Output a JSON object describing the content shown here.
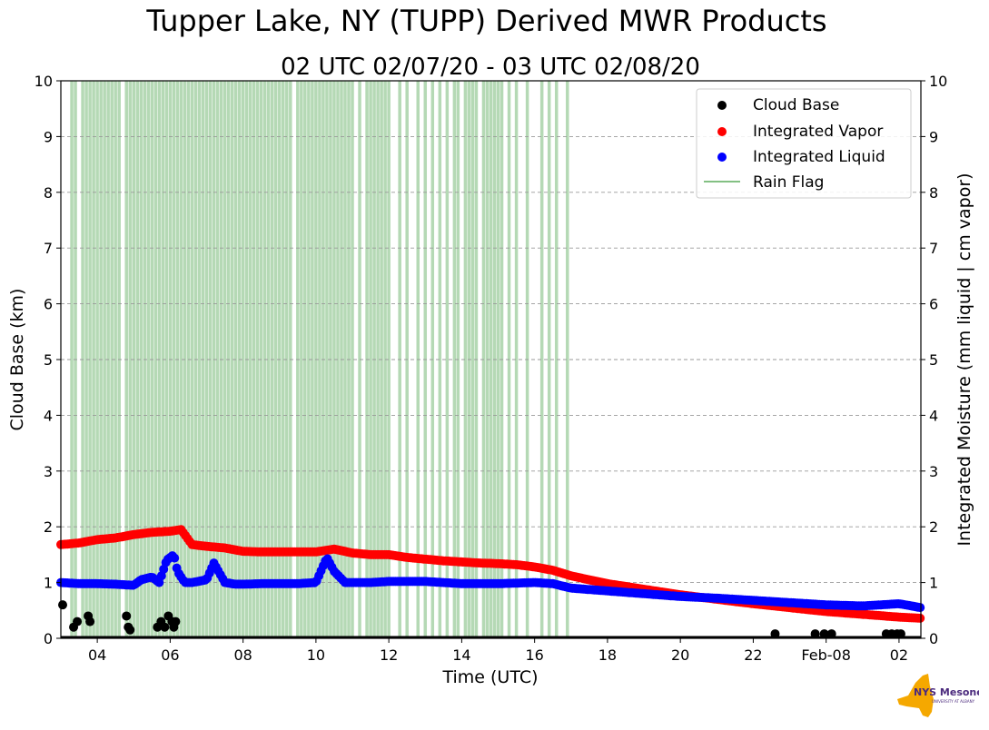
{
  "chart_data": {
    "type": "scatter",
    "title": "Tupper Lake, NY (TUPP) Derived MWR Products",
    "subtitle": "02 UTC 02/07/20 - 03 UTC 02/08/20",
    "xlabel": "Time (UTC)",
    "ylabel": "Cloud Base (km)",
    "ylabel_right": "Integrated Moisture (mm liquid | cm vapor)",
    "xlim_hours": [
      3.0,
      26.6
    ],
    "ylim": [
      0,
      10
    ],
    "y_ticks": [
      0,
      1,
      2,
      3,
      4,
      5,
      6,
      7,
      8,
      9,
      10
    ],
    "x_ticks": [
      {
        "h": 4,
        "label": "04"
      },
      {
        "h": 6,
        "label": "06"
      },
      {
        "h": 8,
        "label": "08"
      },
      {
        "h": 10,
        "label": "10"
      },
      {
        "h": 12,
        "label": "12"
      },
      {
        "h": 14,
        "label": "14"
      },
      {
        "h": 16,
        "label": "16"
      },
      {
        "h": 18,
        "label": "18"
      },
      {
        "h": 20,
        "label": "20"
      },
      {
        "h": 22,
        "label": "22"
      },
      {
        "h": 24,
        "label": "Feb-08"
      },
      {
        "h": 26,
        "label": "02"
      }
    ],
    "grid": "horizontal dashed",
    "legend_position": "top-right",
    "legend": [
      "Cloud Base",
      "Integrated Vapor",
      "Integrated Liquid",
      "Rain Flag"
    ],
    "colors": {
      "cloud_base": "#000000",
      "vapor": "#ff0000",
      "liquid": "#0000ff",
      "rain_flag": "#5aab5a"
    },
    "series": [
      {
        "name": "Integrated Vapor",
        "x": [
          3.0,
          3.5,
          4.0,
          4.5,
          5.0,
          5.5,
          6.0,
          6.3,
          6.6,
          7.0,
          7.5,
          8.0,
          8.5,
          9.0,
          9.5,
          10.0,
          10.5,
          11.0,
          11.5,
          12.0,
          12.5,
          13.0,
          13.5,
          14.0,
          14.5,
          15.0,
          15.5,
          16.0,
          16.5,
          17.0,
          17.5,
          18.0,
          19.0,
          20.0,
          21.0,
          22.0,
          23.0,
          24.0,
          25.0,
          26.0,
          26.6
        ],
        "y": [
          1.68,
          1.71,
          1.77,
          1.8,
          1.86,
          1.9,
          1.92,
          1.95,
          1.68,
          1.65,
          1.62,
          1.56,
          1.55,
          1.55,
          1.55,
          1.55,
          1.6,
          1.53,
          1.5,
          1.5,
          1.45,
          1.42,
          1.39,
          1.37,
          1.35,
          1.34,
          1.32,
          1.28,
          1.22,
          1.12,
          1.05,
          0.98,
          0.88,
          0.78,
          0.7,
          0.62,
          0.55,
          0.48,
          0.43,
          0.38,
          0.36
        ]
      },
      {
        "name": "Integrated Liquid",
        "x": [
          3.0,
          3.5,
          4.0,
          4.5,
          5.0,
          5.2,
          5.5,
          5.7,
          5.9,
          6.0,
          6.1,
          6.2,
          6.4,
          6.6,
          7.0,
          7.2,
          7.5,
          7.8,
          8.0,
          8.5,
          9.0,
          9.5,
          10.0,
          10.3,
          10.5,
          10.8,
          11.0,
          11.5,
          12.0,
          13.0,
          14.0,
          15.0,
          16.0,
          16.5,
          17.0,
          18.0,
          19.0,
          20.0,
          21.0,
          22.0,
          23.0,
          24.0,
          25.0,
          25.5,
          26.0,
          26.6
        ],
        "y": [
          1.0,
          0.98,
          0.98,
          0.97,
          0.95,
          1.05,
          1.1,
          1.0,
          1.4,
          1.45,
          1.5,
          1.2,
          1.0,
          1.0,
          1.05,
          1.35,
          1.0,
          0.97,
          0.97,
          0.98,
          0.98,
          0.98,
          1.0,
          1.45,
          1.2,
          1.0,
          1.0,
          1.0,
          1.02,
          1.02,
          0.98,
          0.98,
          1.0,
          0.98,
          0.9,
          0.85,
          0.8,
          0.75,
          0.72,
          0.68,
          0.64,
          0.6,
          0.58,
          0.6,
          0.62,
          0.55
        ]
      },
      {
        "name": "Cloud Base",
        "x": [
          3.05,
          3.35,
          3.45,
          3.75,
          3.8,
          4.8,
          4.85,
          4.9,
          5.65,
          5.75,
          5.85,
          5.95,
          6.05,
          6.1,
          6.15,
          22.6,
          23.7,
          23.95,
          24.15,
          25.65,
          25.8,
          25.95,
          26.05
        ],
        "y": [
          0.6,
          0.2,
          0.3,
          0.4,
          0.3,
          0.4,
          0.2,
          0.15,
          0.2,
          0.3,
          0.2,
          0.4,
          0.3,
          0.2,
          0.3,
          0.08,
          0.08,
          0.08,
          0.08,
          0.08,
          0.08,
          0.08,
          0.08
        ]
      },
      {
        "name": "Rain Flag",
        "x": [
          3.3,
          3.4,
          3.6,
          3.7,
          3.8,
          3.9,
          4.0,
          4.1,
          4.2,
          4.3,
          4.4,
          4.5,
          4.6,
          4.8,
          4.9,
          5.0,
          5.1,
          5.2,
          5.3,
          5.4,
          5.5,
          5.6,
          5.7,
          5.8,
          5.9,
          6.0,
          6.1,
          6.2,
          6.3,
          6.4,
          6.5,
          6.6,
          6.7,
          6.8,
          6.9,
          7.0,
          7.1,
          7.2,
          7.3,
          7.4,
          7.5,
          7.6,
          7.7,
          7.8,
          7.9,
          8.0,
          8.1,
          8.2,
          8.3,
          8.4,
          8.5,
          8.6,
          8.7,
          8.8,
          8.9,
          9.0,
          9.1,
          9.2,
          9.3,
          9.5,
          9.6,
          9.7,
          9.8,
          9.9,
          10.0,
          10.1,
          10.2,
          10.3,
          10.4,
          10.5,
          10.6,
          10.7,
          10.8,
          10.9,
          11.0,
          11.2,
          11.4,
          11.5,
          11.6,
          11.7,
          11.8,
          11.9,
          12.0,
          12.3,
          12.5,
          12.8,
          13.0,
          13.2,
          13.4,
          13.6,
          13.8,
          13.9,
          14.1,
          14.2,
          14.3,
          14.4,
          14.6,
          14.7,
          14.8,
          14.9,
          15.0,
          15.1,
          15.3,
          15.5,
          15.8,
          16.2,
          16.4,
          16.6,
          16.9
        ]
      }
    ]
  },
  "logo": {
    "text": "NYS Mesonet",
    "subtext": "UNIVERSITY AT ALBANY"
  }
}
